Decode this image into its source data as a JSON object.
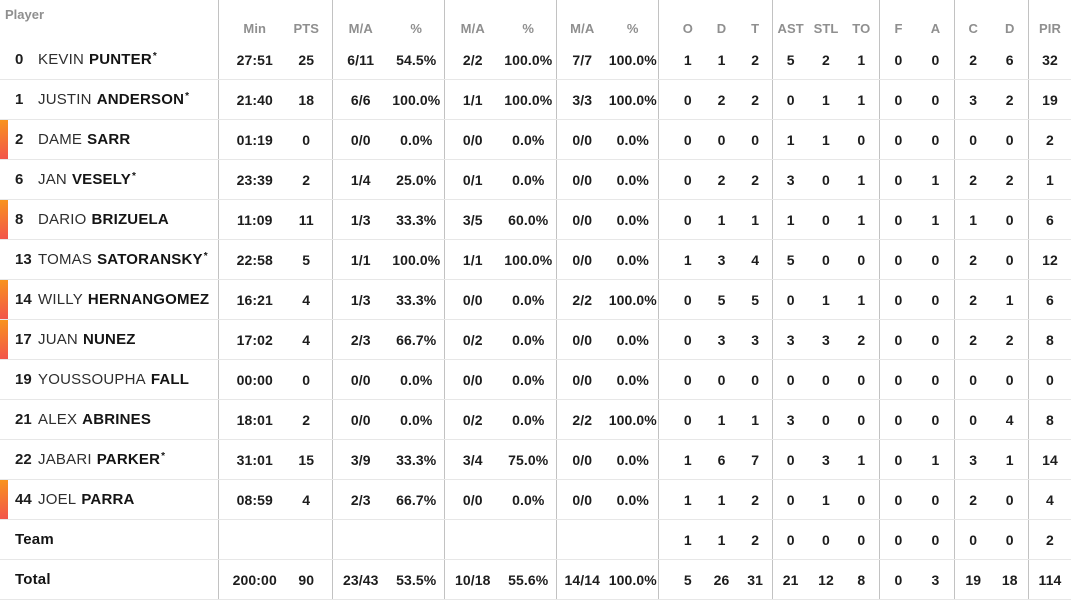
{
  "header": {
    "player_label": "Player",
    "groups": [
      {
        "name": "minutes-points",
        "cols": [
          "Min",
          "PTS"
        ]
      },
      {
        "name": "two-pointers",
        "cols": [
          "M/A",
          "%"
        ]
      },
      {
        "name": "three-pointers",
        "cols": [
          "M/A",
          "%"
        ]
      },
      {
        "name": "free-throws",
        "cols": [
          "M/A",
          "%"
        ]
      },
      {
        "name": "rebounds",
        "cols": [
          "O",
          "D",
          "T"
        ]
      },
      {
        "name": "ast-stl-to",
        "cols": [
          "AST",
          "STL",
          "TO"
        ]
      },
      {
        "name": "blocks",
        "cols": [
          "F",
          "A"
        ]
      },
      {
        "name": "fouls",
        "cols": [
          "C",
          "D"
        ]
      },
      {
        "name": "pir",
        "cols": [
          "PIR"
        ]
      }
    ]
  },
  "legend": {
    "starter_marker": "*"
  },
  "colors": {
    "oncourt_gradient_top": "#f8941d",
    "oncourt_gradient_bottom": "#f2544c",
    "header_text": "#8f8f8f",
    "data_text": "#1d1d1d",
    "group_border": "#c2c2c2",
    "row_border": "#e7e7e7"
  },
  "rows": [
    {
      "num": "0",
      "first": "KEVIN",
      "last": "PUNTER",
      "starter": true,
      "oncourt": false,
      "min": "27:51",
      "pts": "25",
      "p2": "6/11",
      "p2pct": "54.5%",
      "p3": "2/2",
      "p3pct": "100.0%",
      "ft": "7/7",
      "ftpct": "100.0%",
      "or": "1",
      "dr": "1",
      "tr": "2",
      "ast": "5",
      "stl": "2",
      "to": "1",
      "bf": "0",
      "ba": "0",
      "fc": "2",
      "fd": "6",
      "pir": "32"
    },
    {
      "num": "1",
      "first": "JUSTIN",
      "last": "ANDERSON",
      "starter": true,
      "oncourt": false,
      "min": "21:40",
      "pts": "18",
      "p2": "6/6",
      "p2pct": "100.0%",
      "p3": "1/1",
      "p3pct": "100.0%",
      "ft": "3/3",
      "ftpct": "100.0%",
      "or": "0",
      "dr": "2",
      "tr": "2",
      "ast": "0",
      "stl": "1",
      "to": "1",
      "bf": "0",
      "ba": "0",
      "fc": "3",
      "fd": "2",
      "pir": "19"
    },
    {
      "num": "2",
      "first": "DAME",
      "last": "SARR",
      "starter": false,
      "oncourt": true,
      "min": "01:19",
      "pts": "0",
      "p2": "0/0",
      "p2pct": "0.0%",
      "p3": "0/0",
      "p3pct": "0.0%",
      "ft": "0/0",
      "ftpct": "0.0%",
      "or": "0",
      "dr": "0",
      "tr": "0",
      "ast": "1",
      "stl": "1",
      "to": "0",
      "bf": "0",
      "ba": "0",
      "fc": "0",
      "fd": "0",
      "pir": "2"
    },
    {
      "num": "6",
      "first": "JAN",
      "last": "VESELY",
      "starter": true,
      "oncourt": false,
      "min": "23:39",
      "pts": "2",
      "p2": "1/4",
      "p2pct": "25.0%",
      "p3": "0/1",
      "p3pct": "0.0%",
      "ft": "0/0",
      "ftpct": "0.0%",
      "or": "0",
      "dr": "2",
      "tr": "2",
      "ast": "3",
      "stl": "0",
      "to": "1",
      "bf": "0",
      "ba": "1",
      "fc": "2",
      "fd": "2",
      "pir": "1"
    },
    {
      "num": "8",
      "first": "DARIO",
      "last": "BRIZUELA",
      "starter": false,
      "oncourt": true,
      "min": "11:09",
      "pts": "11",
      "p2": "1/3",
      "p2pct": "33.3%",
      "p3": "3/5",
      "p3pct": "60.0%",
      "ft": "0/0",
      "ftpct": "0.0%",
      "or": "0",
      "dr": "1",
      "tr": "1",
      "ast": "1",
      "stl": "0",
      "to": "1",
      "bf": "0",
      "ba": "1",
      "fc": "1",
      "fd": "0",
      "pir": "6"
    },
    {
      "num": "13",
      "first": "TOMAS",
      "last": "SATORANSKY",
      "starter": true,
      "oncourt": false,
      "min": "22:58",
      "pts": "5",
      "p2": "1/1",
      "p2pct": "100.0%",
      "p3": "1/1",
      "p3pct": "100.0%",
      "ft": "0/0",
      "ftpct": "0.0%",
      "or": "1",
      "dr": "3",
      "tr": "4",
      "ast": "5",
      "stl": "0",
      "to": "0",
      "bf": "0",
      "ba": "0",
      "fc": "2",
      "fd": "0",
      "pir": "12"
    },
    {
      "num": "14",
      "first": "WILLY",
      "last": "HERNANGOMEZ",
      "starter": false,
      "oncourt": true,
      "min": "16:21",
      "pts": "4",
      "p2": "1/3",
      "p2pct": "33.3%",
      "p3": "0/0",
      "p3pct": "0.0%",
      "ft": "2/2",
      "ftpct": "100.0%",
      "or": "0",
      "dr": "5",
      "tr": "5",
      "ast": "0",
      "stl": "1",
      "to": "1",
      "bf": "0",
      "ba": "0",
      "fc": "2",
      "fd": "1",
      "pir": "6"
    },
    {
      "num": "17",
      "first": "JUAN",
      "last": "NUNEZ",
      "starter": false,
      "oncourt": true,
      "min": "17:02",
      "pts": "4",
      "p2": "2/3",
      "p2pct": "66.7%",
      "p3": "0/2",
      "p3pct": "0.0%",
      "ft": "0/0",
      "ftpct": "0.0%",
      "or": "0",
      "dr": "3",
      "tr": "3",
      "ast": "3",
      "stl": "3",
      "to": "2",
      "bf": "0",
      "ba": "0",
      "fc": "2",
      "fd": "2",
      "pir": "8"
    },
    {
      "num": "19",
      "first": "YOUSSOUPHA",
      "last": "FALL",
      "starter": false,
      "oncourt": false,
      "min": "00:00",
      "pts": "0",
      "p2": "0/0",
      "p2pct": "0.0%",
      "p3": "0/0",
      "p3pct": "0.0%",
      "ft": "0/0",
      "ftpct": "0.0%",
      "or": "0",
      "dr": "0",
      "tr": "0",
      "ast": "0",
      "stl": "0",
      "to": "0",
      "bf": "0",
      "ba": "0",
      "fc": "0",
      "fd": "0",
      "pir": "0"
    },
    {
      "num": "21",
      "first": "ALEX",
      "last": "ABRINES",
      "starter": false,
      "oncourt": false,
      "min": "18:01",
      "pts": "2",
      "p2": "0/0",
      "p2pct": "0.0%",
      "p3": "0/2",
      "p3pct": "0.0%",
      "ft": "2/2",
      "ftpct": "100.0%",
      "or": "0",
      "dr": "1",
      "tr": "1",
      "ast": "3",
      "stl": "0",
      "to": "0",
      "bf": "0",
      "ba": "0",
      "fc": "0",
      "fd": "4",
      "pir": "8"
    },
    {
      "num": "22",
      "first": "JABARI",
      "last": "PARKER",
      "starter": true,
      "oncourt": false,
      "min": "31:01",
      "pts": "15",
      "p2": "3/9",
      "p2pct": "33.3%",
      "p3": "3/4",
      "p3pct": "75.0%",
      "ft": "0/0",
      "ftpct": "0.0%",
      "or": "1",
      "dr": "6",
      "tr": "7",
      "ast": "0",
      "stl": "3",
      "to": "1",
      "bf": "0",
      "ba": "1",
      "fc": "3",
      "fd": "1",
      "pir": "14"
    },
    {
      "num": "44",
      "first": "JOEL",
      "last": "PARRA",
      "starter": false,
      "oncourt": true,
      "min": "08:59",
      "pts": "4",
      "p2": "2/3",
      "p2pct": "66.7%",
      "p3": "0/0",
      "p3pct": "0.0%",
      "ft": "0/0",
      "ftpct": "0.0%",
      "or": "1",
      "dr": "1",
      "tr": "2",
      "ast": "0",
      "stl": "1",
      "to": "0",
      "bf": "0",
      "ba": "0",
      "fc": "2",
      "fd": "0",
      "pir": "4"
    },
    {
      "num": "",
      "first": "",
      "last": "Team",
      "starter": false,
      "oncourt": false,
      "min": "",
      "pts": "",
      "p2": "",
      "p2pct": "",
      "p3": "",
      "p3pct": "",
      "ft": "",
      "ftpct": "",
      "or": "1",
      "dr": "1",
      "tr": "2",
      "ast": "0",
      "stl": "0",
      "to": "0",
      "bf": "0",
      "ba": "0",
      "fc": "0",
      "fd": "0",
      "pir": "2"
    },
    {
      "num": "",
      "first": "",
      "last": "Total",
      "starter": false,
      "oncourt": false,
      "min": "200:00",
      "pts": "90",
      "p2": "23/43",
      "p2pct": "53.5%",
      "p3": "10/18",
      "p3pct": "55.6%",
      "ft": "14/14",
      "ftpct": "100.0%",
      "or": "5",
      "dr": "26",
      "tr": "31",
      "ast": "21",
      "stl": "12",
      "to": "8",
      "bf": "0",
      "ba": "3",
      "fc": "19",
      "fd": "18",
      "pir": "114"
    }
  ]
}
